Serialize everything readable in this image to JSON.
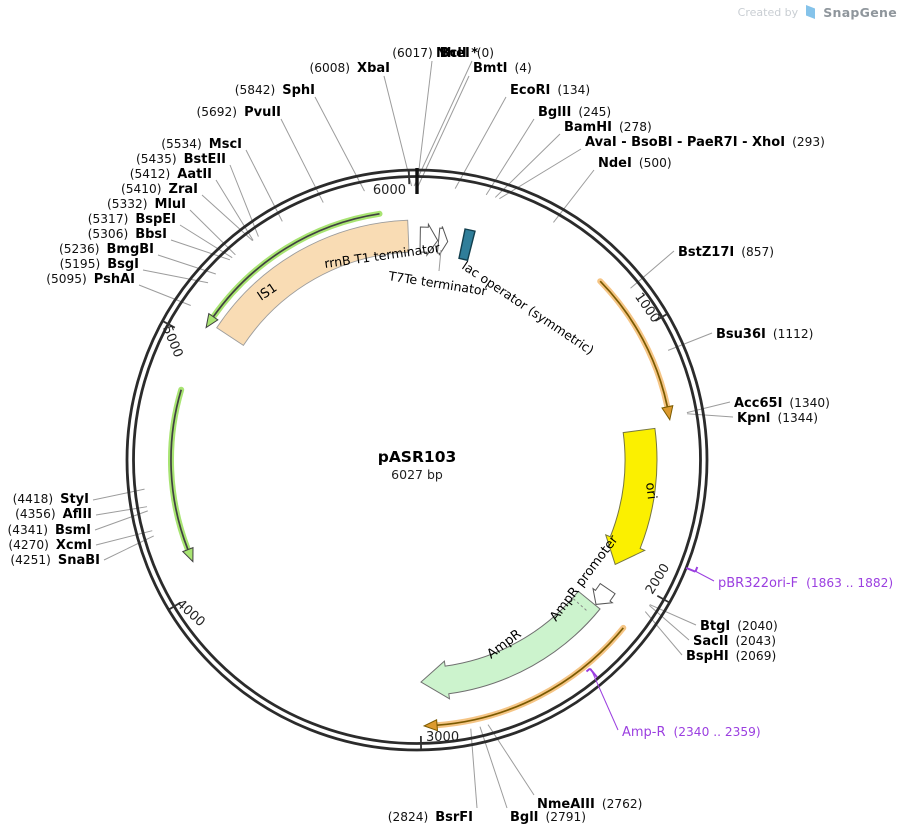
{
  "watermark": {
    "prefix": "Created by",
    "brand": "SnapGene"
  },
  "plasmid": {
    "name": "pASR103",
    "size": "6027 bp"
  },
  "chart_data": {
    "type": "plasmid-map",
    "name": "pASR103",
    "length_bp": 6027,
    "tick_interval": 1000,
    "ticks": [
      {
        "bp": 1000,
        "label": "1000"
      },
      {
        "bp": 2000,
        "label": "2000"
      },
      {
        "bp": 3000,
        "label": "3000"
      },
      {
        "bp": 4000,
        "label": "4000"
      },
      {
        "bp": 5000,
        "label": "5000"
      },
      {
        "bp": 6000,
        "label": "6000"
      }
    ],
    "origin_marker_bp": 0,
    "features": [
      {
        "id": "is1",
        "label": "IS1",
        "kind": "band",
        "start": 5080,
        "end": 5990,
        "fill": "#F9DCB4",
        "stroke": "#9C9C9C"
      },
      {
        "id": "rrnb-t1-terminator",
        "label": "rrnB T1 terminator",
        "kind": "band-arrow",
        "start": 14,
        "end": 90,
        "fill": "#FFFFFF",
        "stroke": "#555555",
        "headLen": 10,
        "over": 3,
        "strand": "forward"
      },
      {
        "id": "t7te-terminator",
        "label": "T7Te terminator",
        "kind": "band-arrow",
        "start": 94,
        "end": 134,
        "fill": "#FFFFFF",
        "stroke": "#555555",
        "headLen": 7,
        "over": 2,
        "strand": "forward"
      },
      {
        "id": "lac-operator",
        "label": "lac operator (symmetric)",
        "kind": "box",
        "start": 197,
        "end": 238,
        "fill": "#2F7E9A",
        "stroke": "#123F4E"
      },
      {
        "id": "orange-arc-1",
        "label": "",
        "kind": "thin-arrow",
        "start": 765,
        "end": 1355,
        "head": "end",
        "color": "orange",
        "r": 256,
        "strand": "forward"
      },
      {
        "id": "ori",
        "label": "ori",
        "kind": "band-arrow",
        "start": 1380,
        "end": 1972,
        "fill": "#FBF000",
        "stroke": "#767640",
        "headLen": 24,
        "over": 5,
        "strand": "forward"
      },
      {
        "id": "ampr-promoter",
        "label": "AmpR promoter",
        "kind": "band-arrow",
        "start": 2076,
        "end": 2158,
        "fill": "#FFFFFF",
        "stroke": "#555555",
        "r1": 221,
        "r2": 239,
        "headLen": 11,
        "over": 3,
        "strand": "forward"
      },
      {
        "id": "ampr",
        "label": "AmpR",
        "kind": "band-arrow",
        "start": 2162,
        "end": 2996,
        "fill": "#CCF3CD",
        "stroke": "#6F6F6F",
        "headLen": 26,
        "over": 5,
        "strand": "forward",
        "boundary_dash_bp": 2203
      },
      {
        "id": "orange-arc-2",
        "label": "",
        "kind": "thin-arrow",
        "start": 2162,
        "end": 2988,
        "head": "end",
        "color": "orange",
        "r": 266,
        "strand": "forward"
      },
      {
        "id": "green-arc-1",
        "label": "",
        "kind": "thin-arrow",
        "start": 5058,
        "end": 5882,
        "head": "start",
        "color": "green",
        "r": 249,
        "strand": "reverse"
      },
      {
        "id": "green-arc-2",
        "label": "",
        "kind": "thin-arrow",
        "start": 4112,
        "end": 4798,
        "head": "start",
        "color": "green",
        "r": 246,
        "strand": "reverse"
      }
    ],
    "enzyme_sites": [
      {
        "name": "NheI",
        "position": 0
      },
      {
        "name": "BmtI",
        "position": 4
      },
      {
        "name": "EcoRI",
        "position": 134
      },
      {
        "name": "BglII",
        "position": 245
      },
      {
        "name": "BamHI",
        "position": 278
      },
      {
        "name": "AvaI - BsoBI - PaeR7I - XhoI",
        "position": 293
      },
      {
        "name": "NdeI",
        "position": 500
      },
      {
        "name": "BstZ17I",
        "position": 857
      },
      {
        "name": "Bsu36I",
        "position": 1112
      },
      {
        "name": "Acc65I",
        "position": 1340
      },
      {
        "name": "KpnI",
        "position": 1344
      },
      {
        "name": "BtgI",
        "position": 2040
      },
      {
        "name": "SacII",
        "position": 2043
      },
      {
        "name": "BspHI",
        "position": 2069
      },
      {
        "name": "NmeAIII",
        "position": 2762
      },
      {
        "name": "BglI",
        "position": 2791
      },
      {
        "name": "BsrFI",
        "position": 2824
      },
      {
        "name": "SnaBI",
        "position": 4251
      },
      {
        "name": "XcmI",
        "position": 4270
      },
      {
        "name": "BsmI",
        "position": 4341
      },
      {
        "name": "AflII",
        "position": 4356
      },
      {
        "name": "StyI",
        "position": 4418
      },
      {
        "name": "PshAI",
        "position": 5095
      },
      {
        "name": "BsgI",
        "position": 5195
      },
      {
        "name": "BmgBI",
        "position": 5236
      },
      {
        "name": "BbsI",
        "position": 5306
      },
      {
        "name": "BspEI",
        "position": 5317
      },
      {
        "name": "MluI",
        "position": 5332
      },
      {
        "name": "ZraI",
        "position": 5410
      },
      {
        "name": "AatII",
        "position": 5412
      },
      {
        "name": "BstEII",
        "position": 5435
      },
      {
        "name": "MscI",
        "position": 5534
      },
      {
        "name": "PvuII",
        "position": 5692
      },
      {
        "name": "SphI",
        "position": 5842
      },
      {
        "name": "XbaI",
        "position": 6008
      },
      {
        "name": "BclI *",
        "position": 6017
      }
    ],
    "primers": [
      {
        "name": "pBR322ori-F",
        "range_label": "(1863 .. 1882)",
        "start": 1863,
        "end": 1882,
        "color": "#9B3FE0"
      },
      {
        "name": "Amp-R",
        "range_label": "(2340 .. 2359)",
        "start": 2340,
        "end": 2359,
        "color": "#9B3FE0"
      }
    ],
    "colors": {
      "backbone": "#2B2B2B",
      "leader": "#9C9C9C",
      "primer": "#9B3FE0",
      "green_halo": "#A8E472",
      "green_core": "#404040",
      "orange_halo": "#F5C585",
      "orange_core": "#7A5A00",
      "orange_head": "#DC9A2E"
    }
  }
}
